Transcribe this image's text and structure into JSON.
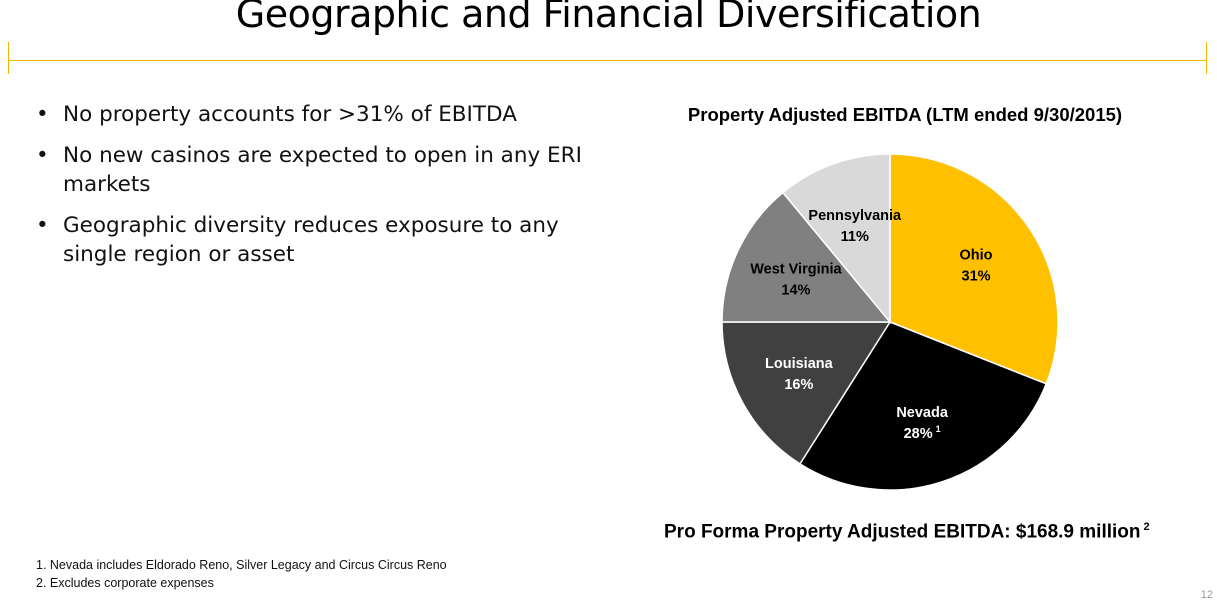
{
  "title": "Geographic and Financial Diversification",
  "bullets": [
    "No property accounts for >31% of EBITDA",
    "No new casinos are expected to open in any ERI markets",
    "Geographic diversity reduces exposure to any single region or asset"
  ],
  "chart_data": {
    "type": "pie",
    "title": "Property Adjusted EBITDA (LTM ended 9/30/2015)",
    "slices": [
      {
        "label": "Ohio",
        "value": 31,
        "display": "31%",
        "note": "",
        "color": "#FFC000",
        "text_color": "#000000"
      },
      {
        "label": "Nevada",
        "value": 28,
        "display": "28%",
        "note": "1",
        "color": "#000000",
        "text_color": "#FFFFFF"
      },
      {
        "label": "Louisiana",
        "value": 16,
        "display": "16%",
        "note": "",
        "color": "#404040",
        "text_color": "#FFFFFF"
      },
      {
        "label": "West Virginia",
        "value": 14,
        "display": "14%",
        "note": "",
        "color": "#808080",
        "text_color": "#000000"
      },
      {
        "label": "Pennsylvania",
        "value": 11,
        "display": "11%",
        "note": "",
        "color": "#D9D9D9",
        "text_color": "#000000"
      }
    ],
    "summary": "Pro Forma Property Adjusted EBITDA: $168.9 million",
    "summary_note": "2"
  },
  "footnotes": [
    "1. Nevada includes Eldorado Reno, Silver Legacy and Circus Circus Reno",
    "2. Excludes corporate expenses"
  ],
  "page_number": "12"
}
